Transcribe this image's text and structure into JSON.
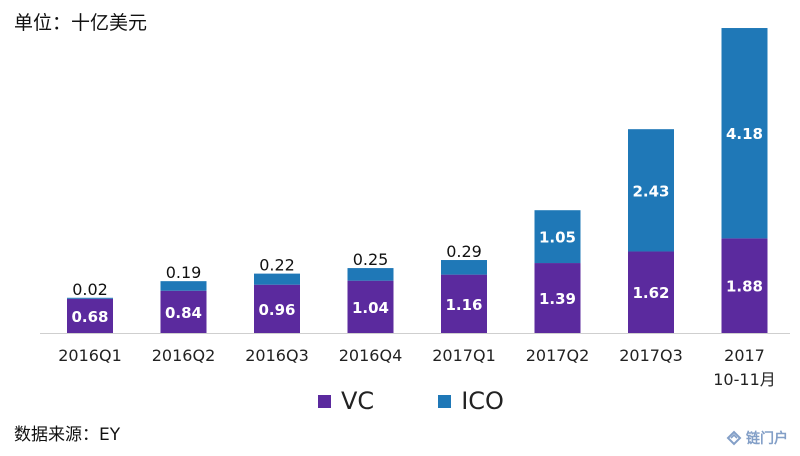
{
  "unit_label": "单位：十亿美元",
  "source_label": "数据来源：EY",
  "watermark": "链门户",
  "colors": {
    "vc": "#5B2A9E",
    "ico": "#1F78B7"
  },
  "legend": [
    {
      "label": "VC",
      "color": "#5B2A9E"
    },
    {
      "label": "ICO",
      "color": "#1F78B7"
    }
  ],
  "chart_data": {
    "type": "bar",
    "stacked": true,
    "categories": [
      [
        "2016Q1"
      ],
      [
        "2016Q2"
      ],
      [
        "2016Q3"
      ],
      [
        "2016Q4"
      ],
      [
        "2017Q1"
      ],
      [
        "2017Q2"
      ],
      [
        "2017Q3"
      ],
      [
        "2017",
        "10-11月"
      ]
    ],
    "series": [
      {
        "name": "VC",
        "values": [
          0.68,
          0.84,
          0.96,
          1.04,
          1.16,
          1.39,
          1.62,
          1.88
        ]
      },
      {
        "name": "ICO",
        "values": [
          0.02,
          0.19,
          0.22,
          0.25,
          0.29,
          1.05,
          2.43,
          4.18
        ]
      }
    ],
    "ylim": [
      0,
      6.14
    ],
    "grid": false,
    "legend_position": "bottom"
  }
}
